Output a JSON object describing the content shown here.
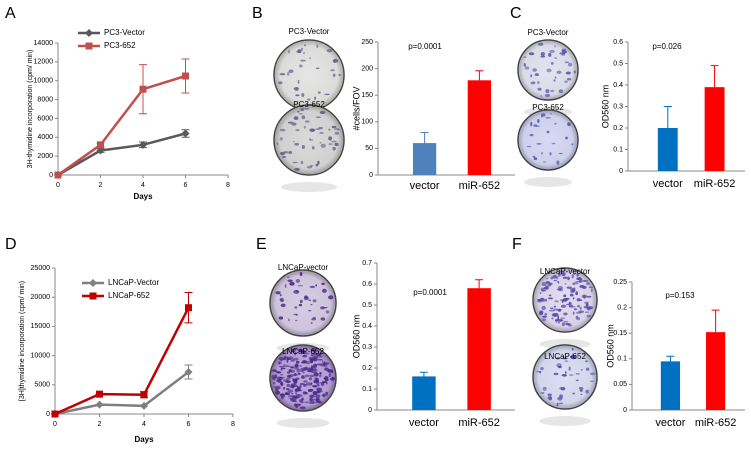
{
  "chart_data": [
    {
      "type": "line",
      "panel": "A",
      "xlabel": "Days",
      "ylabel": "3H-thymidine incorporation (cpm/ min)",
      "x": [
        0,
        2,
        4,
        6
      ],
      "xlim": [
        0,
        8
      ],
      "xticks": [
        0,
        2,
        4,
        6,
        8
      ],
      "ylim": [
        0,
        14000
      ],
      "yticks": [
        0,
        2000,
        4000,
        6000,
        8000,
        10000,
        12000,
        14000
      ],
      "legend": "upper left",
      "series": [
        {
          "name": "PC3-Vector",
          "color": "#595959",
          "marker": "diamond",
          "values": [
            0,
            2600,
            3200,
            4400
          ],
          "errors": [
            0,
            200,
            300,
            400
          ]
        },
        {
          "name": "PC3-652",
          "color": "#c0504d",
          "marker": "square",
          "values": [
            0,
            3200,
            9100,
            10500
          ],
          "errors": [
            0,
            200,
            2600,
            1800
          ]
        }
      ]
    },
    {
      "type": "bar",
      "panel": "B",
      "images": [
        "PC3-Vector",
        "PC3-652"
      ],
      "ylabel": "#cells/FOV",
      "annotation": "p=0.0001",
      "categories": [
        "vector",
        "miR-652"
      ],
      "values": [
        60,
        178
      ],
      "errors": [
        20,
        18
      ],
      "colors": [
        "#4f81bd",
        "#ff0000"
      ],
      "ylim": [
        0,
        250
      ],
      "yticks": [
        0,
        50,
        100,
        150,
        200,
        250
      ]
    },
    {
      "type": "bar",
      "panel": "C",
      "images": [
        "PC3-Vector",
        "PC3-652"
      ],
      "ylabel": "OD560 nm",
      "annotation": "p=0.026",
      "categories": [
        "vector",
        "miR-652"
      ],
      "values": [
        0.2,
        0.39
      ],
      "errors": [
        0.1,
        0.1
      ],
      "colors": [
        "#0070c0",
        "#ff0000"
      ],
      "ylim": [
        0,
        0.6
      ],
      "yticks": [
        0,
        0.1,
        0.2,
        0.3,
        0.4,
        0.5,
        0.6
      ]
    },
    {
      "type": "line",
      "panel": "D",
      "xlabel": "Days",
      "ylabel": "[3H]thymidine incorporation (cpm/ min)",
      "x": [
        0,
        2,
        4,
        6
      ],
      "xlim": [
        0,
        8
      ],
      "xticks": [
        0,
        2,
        4,
        6,
        8
      ],
      "ylim": [
        0,
        25000
      ],
      "yticks": [
        0,
        5000,
        10000,
        15000,
        20000,
        25000
      ],
      "legend": "upper left",
      "series": [
        {
          "name": "LNCaP-Vector",
          "color": "#7f7f7f",
          "marker": "diamond",
          "values": [
            0,
            1600,
            1400,
            7200
          ],
          "errors": [
            0,
            0,
            0,
            1200
          ]
        },
        {
          "name": "LNCaP-652",
          "color": "#c00000",
          "marker": "square",
          "values": [
            0,
            3400,
            3300,
            18200
          ],
          "errors": [
            0,
            0,
            500,
            2600
          ]
        }
      ]
    },
    {
      "type": "bar",
      "panel": "E",
      "images": [
        "LNCaP-vector",
        "LNCaP-652"
      ],
      "ylabel": "OD560 nm",
      "annotation": "p=0.0001",
      "categories": [
        "vector",
        "miR-652"
      ],
      "values": [
        0.16,
        0.58
      ],
      "errors": [
        0.02,
        0.04
      ],
      "colors": [
        "#0070c0",
        "#ff0000"
      ],
      "ylim": [
        0,
        0.7
      ],
      "yticks": [
        0,
        0.1,
        0.2,
        0.3,
        0.4,
        0.5,
        0.6,
        0.7
      ]
    },
    {
      "type": "bar",
      "panel": "F",
      "images": [
        "LNCaP-vector",
        "LNCaP-652"
      ],
      "ylabel": "OD560 nm",
      "annotation": "p=0.153",
      "categories": [
        "vector",
        "miR-652"
      ],
      "values": [
        0.095,
        0.152
      ],
      "errors": [
        0.01,
        0.043
      ],
      "colors": [
        "#0070c0",
        "#ff0000"
      ],
      "ylim": [
        0,
        0.25
      ],
      "yticks": [
        0,
        0.05,
        0.1,
        0.15,
        0.2,
        0.25
      ]
    }
  ]
}
